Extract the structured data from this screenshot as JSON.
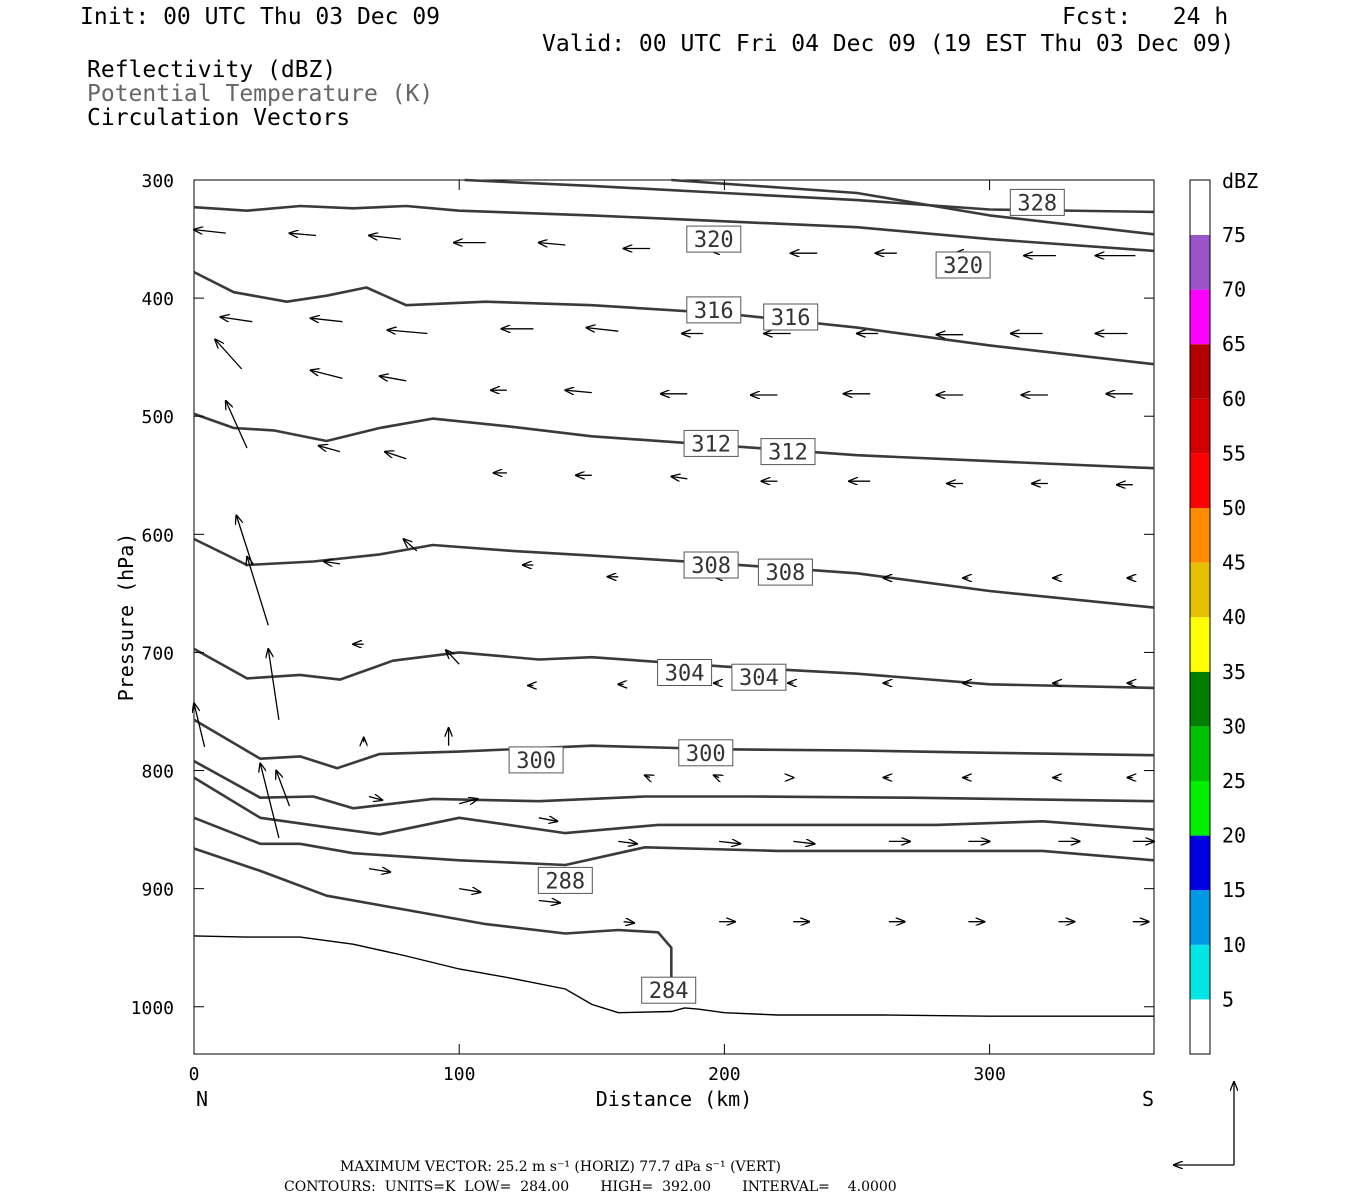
{
  "header": {
    "init": "Init: 00 UTC Thu 03 Dec 09",
    "fcst": "Fcst:   24 h",
    "valid": "Valid: 00 UTC Fri 04 Dec 09 (19 EST Thu 03 Dec 09)",
    "field1": "Reflectivity (dBZ)",
    "field2": "Potential Temperature (K)",
    "field3": "Circulation Vectors"
  },
  "footer": {
    "line1": "MAXIMUM VECTOR:  25.2 m s⁻¹ (HORIZ)        77.7 dPa s⁻¹ (VERT)",
    "line2": "CONTOURS:  UNITS=K  LOW=  284.00       HIGH=  392.00       INTERVAL=    4.0000"
  },
  "colors": {
    "contour": "#3a3a3a",
    "legend": [
      "#ffffff",
      "#00e5e5",
      "#0099e5",
      "#0000e5",
      "#00f000",
      "#00c000",
      "#008000",
      "#ffff00",
      "#e5bf00",
      "#ff8c00",
      "#ff0000",
      "#d40000",
      "#b40000",
      "#ff00ff",
      "#9955c9",
      "#ffffff"
    ]
  },
  "chart_data": {
    "type": "cross-section",
    "xlabel": "Distance (km)",
    "ylabel": "Pressure (hPa)",
    "xlim": [
      0,
      362
    ],
    "ylim": [
      1040,
      300
    ],
    "x_ticks": [
      0,
      100,
      200,
      300
    ],
    "y_ticks": [
      300,
      400,
      500,
      600,
      700,
      800,
      900,
      1000
    ],
    "x_end_labels": [
      "N",
      "S"
    ],
    "legend": {
      "title": "dBZ",
      "values": [
        5,
        10,
        15,
        20,
        25,
        30,
        35,
        40,
        45,
        50,
        55,
        60,
        65,
        70,
        75
      ]
    },
    "terrain": [
      [
        0,
        940
      ],
      [
        20,
        941
      ],
      [
        40,
        941
      ],
      [
        60,
        947
      ],
      [
        80,
        957
      ],
      [
        100,
        968
      ],
      [
        120,
        976
      ],
      [
        140,
        985
      ],
      [
        150,
        998
      ],
      [
        160,
        1005
      ],
      [
        180,
        1004
      ],
      [
        185,
        1001
      ],
      [
        190,
        1002
      ],
      [
        200,
        1005
      ],
      [
        220,
        1007
      ],
      [
        260,
        1007
      ],
      [
        300,
        1008
      ],
      [
        362,
        1008
      ]
    ],
    "isentropes": [
      {
        "pts": [
          [
            102,
            300
          ],
          [
            150,
            305
          ],
          [
            200,
            311
          ],
          [
            250,
            317
          ],
          [
            300,
            325
          ],
          [
            362,
            327
          ]
        ]
      },
      {
        "pts": [
          [
            0,
            323
          ],
          [
            20,
            326
          ],
          [
            40,
            322
          ],
          [
            60,
            324
          ],
          [
            80,
            322
          ],
          [
            100,
            326
          ],
          [
            150,
            330
          ],
          [
            200,
            335
          ],
          [
            250,
            340
          ],
          [
            300,
            350
          ],
          [
            362,
            360
          ]
        ]
      },
      {
        "pts": [
          [
            180,
            300
          ],
          [
            250,
            311
          ],
          [
            300,
            330
          ],
          [
            362,
            346
          ]
        ]
      },
      {
        "pts": [
          [
            0,
            378
          ],
          [
            15,
            395
          ],
          [
            35,
            403
          ],
          [
            50,
            398
          ],
          [
            65,
            391
          ],
          [
            80,
            406
          ],
          [
            110,
            403
          ],
          [
            150,
            406
          ],
          [
            200,
            413
          ],
          [
            250,
            425
          ],
          [
            300,
            440
          ],
          [
            362,
            456
          ]
        ]
      },
      {
        "pts": [
          [
            0,
            498
          ],
          [
            15,
            510
          ],
          [
            30,
            512
          ],
          [
            50,
            521
          ],
          [
            70,
            510
          ],
          [
            90,
            502
          ],
          [
            120,
            509
          ],
          [
            150,
            517
          ],
          [
            200,
            525
          ],
          [
            250,
            533
          ],
          [
            300,
            538
          ],
          [
            362,
            544
          ]
        ]
      },
      {
        "pts": [
          [
            0,
            604
          ],
          [
            20,
            626
          ],
          [
            45,
            623
          ],
          [
            70,
            617
          ],
          [
            90,
            609
          ],
          [
            120,
            614
          ],
          [
            150,
            618
          ],
          [
            200,
            625
          ],
          [
            250,
            633
          ],
          [
            300,
            648
          ],
          [
            362,
            662
          ]
        ]
      },
      {
        "pts": [
          [
            0,
            697
          ],
          [
            20,
            722
          ],
          [
            40,
            719
          ],
          [
            55,
            723
          ],
          [
            75,
            707
          ],
          [
            100,
            700
          ],
          [
            130,
            706
          ],
          [
            150,
            704
          ],
          [
            200,
            712
          ],
          [
            250,
            718
          ],
          [
            300,
            727
          ],
          [
            362,
            730
          ]
        ]
      },
      {
        "pts": [
          [
            0,
            757
          ],
          [
            25,
            790
          ],
          [
            40,
            788
          ],
          [
            54,
            798
          ],
          [
            70,
            786
          ],
          [
            100,
            784
          ],
          [
            150,
            779
          ],
          [
            200,
            782
          ],
          [
            250,
            783
          ],
          [
            300,
            785
          ],
          [
            362,
            787
          ]
        ]
      },
      {
        "pts": [
          [
            0,
            792
          ],
          [
            25,
            823
          ],
          [
            45,
            822
          ],
          [
            60,
            832
          ],
          [
            90,
            824
          ],
          [
            130,
            826
          ],
          [
            170,
            822
          ],
          [
            210,
            822
          ],
          [
            270,
            823
          ],
          [
            362,
            826
          ]
        ]
      },
      {
        "pts": [
          [
            0,
            806
          ],
          [
            25,
            840
          ],
          [
            50,
            848
          ],
          [
            70,
            854
          ],
          [
            100,
            840
          ],
          [
            140,
            853
          ],
          [
            175,
            846
          ],
          [
            220,
            846
          ],
          [
            280,
            846
          ],
          [
            320,
            843
          ],
          [
            362,
            850
          ]
        ]
      },
      {
        "pts": [
          [
            0,
            840
          ],
          [
            25,
            862
          ],
          [
            40,
            862
          ],
          [
            60,
            870
          ],
          [
            100,
            876
          ],
          [
            140,
            880
          ],
          [
            170,
            865
          ],
          [
            220,
            868
          ],
          [
            280,
            868
          ],
          [
            320,
            868
          ],
          [
            362,
            876
          ]
        ]
      },
      {
        "pts": [
          [
            0,
            866
          ],
          [
            25,
            885
          ],
          [
            50,
            906
          ],
          [
            80,
            918
          ],
          [
            110,
            930
          ],
          [
            140,
            938
          ],
          [
            160,
            935
          ],
          [
            175,
            937
          ],
          [
            180,
            950
          ],
          [
            180,
            985
          ]
        ]
      }
    ],
    "contour_labels": [
      {
        "x": 318,
        "y": 319,
        "text": "328"
      },
      {
        "x": 196,
        "y": 350,
        "text": "320"
      },
      {
        "x": 290,
        "y": 372,
        "text": "320"
      },
      {
        "x": 196,
        "y": 410,
        "text": "316"
      },
      {
        "x": 225,
        "y": 416,
        "text": "316"
      },
      {
        "x": 195,
        "y": 523,
        "text": "312"
      },
      {
        "x": 224,
        "y": 530,
        "text": "312"
      },
      {
        "x": 195,
        "y": 626,
        "text": "308"
      },
      {
        "x": 223,
        "y": 632,
        "text": "308"
      },
      {
        "x": 185,
        "y": 717,
        "text": "304"
      },
      {
        "x": 213,
        "y": 721,
        "text": "304"
      },
      {
        "x": 129,
        "y": 791,
        "text": "300"
      },
      {
        "x": 193,
        "y": 785,
        "text": "300"
      },
      {
        "x": 140,
        "y": 893,
        "text": "288"
      },
      {
        "x": 179,
        "y": 986,
        "text": "284"
      }
    ],
    "vectors": [
      [
        12,
        345,
        -12,
        -3
      ],
      [
        46,
        347,
        -10,
        -2
      ],
      [
        78,
        350,
        -12,
        -3
      ],
      [
        110,
        353,
        -12,
        0
      ],
      [
        140,
        355,
        -10,
        -2
      ],
      [
        172,
        358,
        -10,
        0
      ],
      [
        205,
        360,
        -10,
        0
      ],
      [
        235,
        362,
        -10,
        0
      ],
      [
        265,
        362,
        -8,
        0
      ],
      [
        295,
        362,
        -8,
        0
      ],
      [
        325,
        364,
        -12,
        0
      ],
      [
        355,
        364,
        -15,
        0
      ],
      [
        22,
        420,
        -12,
        -4
      ],
      [
        56,
        420,
        -12,
        -3
      ],
      [
        88,
        430,
        -15,
        -3
      ],
      [
        128,
        426,
        -12,
        0
      ],
      [
        160,
        428,
        -12,
        -3
      ],
      [
        192,
        430,
        -8,
        0
      ],
      [
        225,
        430,
        -10,
        0
      ],
      [
        258,
        430,
        -8,
        0
      ],
      [
        290,
        431,
        -10,
        0
      ],
      [
        320,
        430,
        -12,
        0
      ],
      [
        352,
        430,
        -12,
        0
      ],
      [
        18,
        460,
        -10,
        -25
      ],
      [
        56,
        468,
        -12,
        -7
      ],
      [
        80,
        470,
        -10,
        -4
      ],
      [
        118,
        478,
        -6,
        0
      ],
      [
        150,
        480,
        -10,
        -2
      ],
      [
        186,
        481,
        -10,
        0
      ],
      [
        220,
        482,
        -10,
        0
      ],
      [
        255,
        481,
        -10,
        0
      ],
      [
        290,
        482,
        -10,
        0
      ],
      [
        322,
        482,
        -10,
        0
      ],
      [
        354,
        481,
        -10,
        0
      ],
      [
        20,
        527,
        -8,
        -40
      ],
      [
        55,
        530,
        -8,
        -5
      ],
      [
        80,
        536,
        -8,
        -6
      ],
      [
        118,
        548,
        -5,
        0
      ],
      [
        150,
        550,
        -6,
        0
      ],
      [
        186,
        553,
        -6,
        -2
      ],
      [
        220,
        555,
        -6,
        0
      ],
      [
        255,
        555,
        -8,
        0
      ],
      [
        290,
        557,
        -6,
        0
      ],
      [
        322,
        557,
        -6,
        0
      ],
      [
        354,
        558,
        -6,
        0
      ],
      [
        22,
        626,
        -6,
        -42
      ],
      [
        55,
        625,
        -6,
        -2
      ],
      [
        84,
        614,
        -5,
        -10
      ],
      [
        128,
        626,
        -4,
        0
      ],
      [
        160,
        636,
        -4,
        0
      ],
      [
        198,
        636,
        -2,
        0
      ],
      [
        226,
        636,
        -2,
        0
      ],
      [
        262,
        637,
        -2,
        0
      ],
      [
        292,
        637,
        -2,
        0
      ],
      [
        326,
        637,
        -2,
        0
      ],
      [
        354,
        637,
        -2,
        0
      ],
      [
        28,
        677,
        -8,
        -58
      ],
      [
        64,
        693,
        -4,
        0
      ],
      [
        100,
        710,
        -5,
        -12
      ],
      [
        128,
        728,
        -2,
        0
      ],
      [
        162,
        727,
        -2,
        0
      ],
      [
        198,
        726,
        -2,
        0
      ],
      [
        226,
        726,
        -2,
        0
      ],
      [
        262,
        726,
        -2,
        0
      ],
      [
        292,
        726,
        -2,
        0
      ],
      [
        326,
        726,
        -2,
        0
      ],
      [
        354,
        726,
        -2,
        0
      ],
      [
        32,
        757,
        -4,
        -60
      ],
      [
        64,
        776,
        0,
        -4
      ],
      [
        96,
        779,
        0,
        -15
      ],
      [
        172,
        806,
        -2,
        -2
      ],
      [
        198,
        806,
        -2,
        -2
      ],
      [
        226,
        806,
        0,
        0
      ],
      [
        262,
        806,
        -2,
        0
      ],
      [
        292,
        806,
        -2,
        0
      ],
      [
        326,
        806,
        -2,
        0
      ],
      [
        354,
        806,
        -2,
        0
      ],
      [
        4,
        780,
        -4,
        -37
      ],
      [
        66,
        822,
        5,
        3
      ],
      [
        100,
        828,
        7,
        -4
      ],
      [
        130,
        840,
        7,
        3
      ],
      [
        160,
        860,
        7,
        2
      ],
      [
        198,
        860,
        8,
        2
      ],
      [
        226,
        860,
        8,
        2
      ],
      [
        262,
        860,
        8,
        0
      ],
      [
        292,
        860,
        8,
        0
      ],
      [
        326,
        860,
        8,
        0
      ],
      [
        354,
        860,
        8,
        0
      ],
      [
        36,
        830,
        -5,
        -30
      ],
      [
        32,
        857,
        -7,
        -63
      ],
      [
        66,
        883,
        8,
        3
      ],
      [
        100,
        900,
        8,
        3
      ],
      [
        130,
        910,
        8,
        2
      ],
      [
        162,
        928,
        4,
        1
      ],
      [
        198,
        928,
        6,
        0
      ],
      [
        226,
        928,
        6,
        0
      ],
      [
        262,
        928,
        6,
        0
      ],
      [
        292,
        928,
        6,
        0
      ],
      [
        326,
        928,
        6,
        0
      ],
      [
        354,
        928,
        6,
        0
      ]
    ]
  }
}
